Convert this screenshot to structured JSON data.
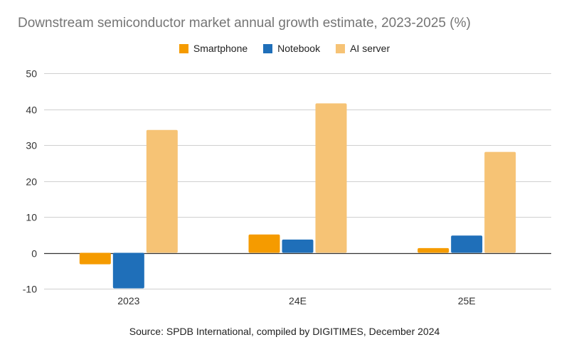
{
  "chart_data": {
    "type": "bar",
    "title": "Downstream semiconductor market  annual growth estimate, 2023-2025 (%)",
    "categories": [
      "2023",
      "24E",
      "25E"
    ],
    "series": [
      {
        "name": "Smartphone",
        "color": "#F59B00",
        "values": [
          -3.2,
          5.1,
          1.3
        ]
      },
      {
        "name": "Notebook",
        "color": "#1F6FB9",
        "values": [
          -9.9,
          3.7,
          4.8
        ]
      },
      {
        "name": "AI server",
        "color": "#F6C375",
        "values": [
          34.2,
          41.6,
          28.1
        ]
      }
    ],
    "ylim": [
      -10,
      50
    ],
    "yticks": [
      -10,
      0,
      10,
      20,
      30,
      40,
      50
    ],
    "ytick_labels": [
      "-10",
      "0",
      "10",
      "20",
      "30",
      "40",
      "50"
    ],
    "xlabel": "",
    "ylabel": "",
    "grid": true,
    "legend_position": "top-center",
    "source": "Source: SPDB International, compiled by DIGITIMES, December 2024"
  }
}
